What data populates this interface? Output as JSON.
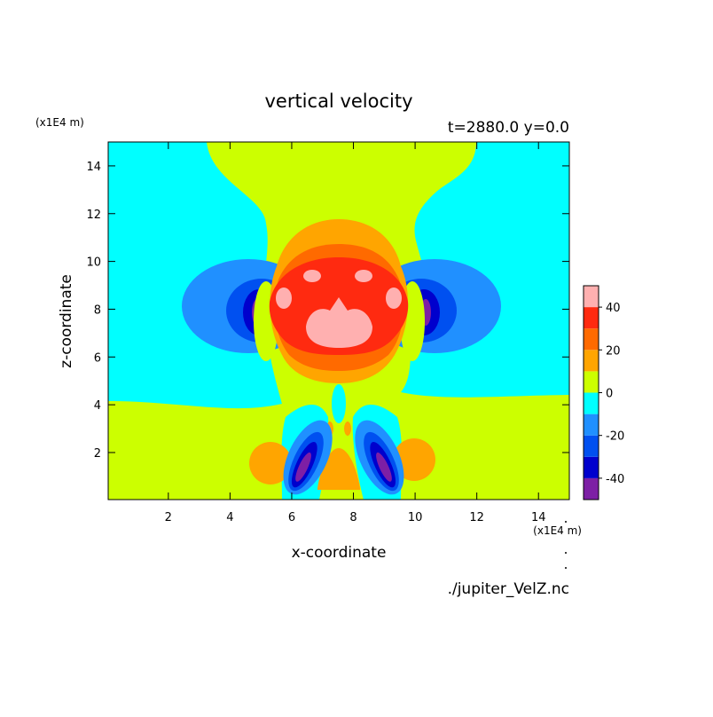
{
  "chart_data": {
    "type": "contour",
    "title": "vertical velocity",
    "subtitle": "t=2880.0 y=0.0",
    "x_label": "x-coordinate",
    "y_label": "z-coordinate",
    "x_unit": "(x1E4 m)",
    "y_unit": "(x1E4 m)",
    "source": "./jupiter_VelZ.nc",
    "xlim": [
      0.05,
      15
    ],
    "xticks": [
      2,
      4,
      6,
      8,
      10,
      12,
      14
    ],
    "ylim": [
      0.03,
      15
    ],
    "yticks": [
      2,
      4,
      6,
      8,
      10,
      12,
      14
    ],
    "levels": [
      -50,
      -40,
      -30,
      -20,
      -10,
      0,
      10,
      20,
      30,
      40,
      50
    ],
    "colors": [
      "#7d1fa5",
      "#0000cd",
      "#0050f0",
      "#2090ff",
      "#00ffff",
      "#ccff00",
      "#ffa500",
      "#ff6a00",
      "#ff2a10",
      "#ffb0b0"
    ],
    "colorbar_ticks": [
      -40,
      -20,
      0,
      20,
      40
    ]
  }
}
